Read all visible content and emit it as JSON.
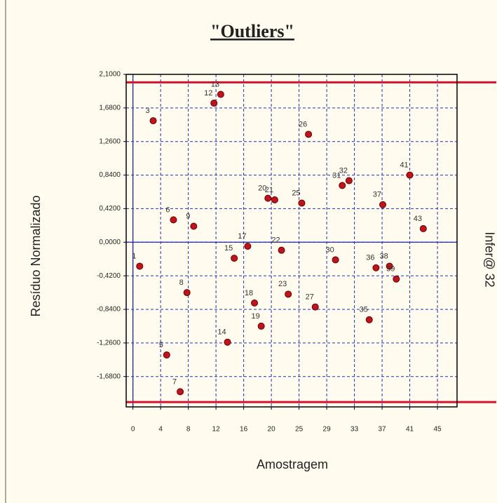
{
  "chart_data": {
    "type": "scatter",
    "title": "\"Outliers\"",
    "x_label": "Amostragem",
    "y_label": "Resíduo Normalizado",
    "annotation": "Infer@ 32",
    "color": "#c0141c",
    "grid": true,
    "xlim": [
      -1,
      48
    ],
    "ylim": [
      -2.06,
      2.1
    ],
    "xticks": [
      0,
      {
        "value": 4.1,
        "label": "4"
      },
      {
        "value": 8.2,
        "label": "8"
      },
      {
        "value": 12.3,
        "label": "12"
      },
      {
        "value": 16.4,
        "label": "16"
      },
      {
        "value": 20.5,
        "label": "20"
      },
      {
        "value": 24.6,
        "label": "25"
      },
      {
        "value": 28.7,
        "label": "29"
      },
      {
        "value": 32.8,
        "label": "33"
      },
      {
        "value": 36.9,
        "label": "37"
      },
      {
        "value": 41,
        "label": "41"
      },
      {
        "value": 45.1,
        "label": "45"
      }
    ],
    "yticks": [
      {
        "value": 2.1,
        "label": "2,1000"
      },
      {
        "value": 1.68,
        "label": "1,6800"
      },
      {
        "value": 1.26,
        "label": "1,2600"
      },
      {
        "value": 0.84,
        "label": "0,8400"
      },
      {
        "value": 0.42,
        "label": "0,4200"
      },
      {
        "value": 0,
        "label": "0,0000"
      },
      {
        "value": -0.42,
        "label": "-0,4200"
      },
      {
        "value": -0.84,
        "label": "-0,8400"
      },
      {
        "value": -1.26,
        "label": "-1,2600"
      },
      {
        "value": -1.68,
        "label": "-1,6800"
      }
    ],
    "hlines": [
      {
        "value": 2,
        "color": "#d4142c"
      },
      {
        "value": -2,
        "color": "#d4142c"
      }
    ],
    "labels": [
      "1",
      "3",
      "5",
      "6",
      "7",
      "8",
      "9",
      "12",
      "13",
      "14",
      "15",
      "17",
      "18",
      "19",
      "20",
      "21",
      "22",
      "23",
      "25",
      "26",
      "27",
      "30",
      "31",
      "32",
      "35",
      "36",
      "37",
      "38",
      "39",
      "41",
      "43"
    ],
    "x": [
      1,
      3,
      5,
      6,
      7,
      8,
      9,
      12,
      13,
      14,
      15,
      17,
      18,
      19,
      20,
      21,
      22,
      23,
      25,
      26,
      27,
      30,
      31,
      32,
      35,
      36,
      37,
      38,
      39,
      41,
      43
    ],
    "values": [
      -0.3,
      1.52,
      -1.41,
      0.28,
      -1.87,
      -0.63,
      0.2,
      1.74,
      1.85,
      -1.25,
      -0.2,
      -0.05,
      -0.76,
      -1.05,
      0.55,
      0.53,
      -0.1,
      -0.65,
      0.49,
      1.35,
      -0.81,
      -0.22,
      0.71,
      0.77,
      -0.97,
      -0.32,
      0.47,
      -0.3,
      -0.46,
      0.84,
      0.17
    ]
  }
}
